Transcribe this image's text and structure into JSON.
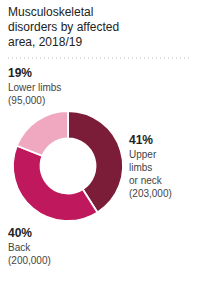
{
  "chart_data": {
    "type": "pie",
    "title": "Musculoskeletal\ndisorders by affected\narea, 2018/19",
    "categories": [
      "Upper\nlimbs\nor neck",
      "Back",
      "Lower limbs"
    ],
    "values": [
      41,
      40,
      19
    ],
    "value_labels": [
      "41%",
      "40%",
      "19%"
    ],
    "data_labels": true,
    "counts": [
      203000,
      200000,
      95000
    ],
    "count_labels": [
      "(203,000)",
      "(200,000)",
      "(95,000)"
    ],
    "colors": [
      "#7B1C38",
      "#C0185C",
      "#EFA8C0"
    ]
  }
}
